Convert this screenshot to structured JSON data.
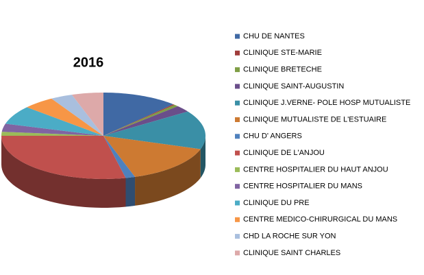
{
  "chart_data": {
    "type": "pie3d",
    "title": "2016",
    "categories": [
      "CHU DE NANTES",
      "CLINIQUE STE-MARIE",
      "CLINIQUE  BRETECHE",
      "CLINIQUE SAINT-AUGUSTIN",
      "CLINIQUE J.VERNE- POLE HOSP MUTUALISTE",
      "CLINIQUE MUTUALISTE DE L'ESTUAIRE",
      "CHU D' ANGERS",
      "CLINIQUE DE L'ANJOU",
      "CENTRE HOSPITALIER  DU HAUT ANJOU",
      "CENTRE HOSPITALIER DU MANS",
      "CLINIQUE DU PRE",
      "CENTRE MEDICO-CHIRURGICAL DU MANS",
      "CHD LA ROCHE SUR YON",
      "CLINIQUE SAINT CHARLES"
    ],
    "values": [
      12,
      0.3,
      0.7,
      2.5,
      14.5,
      15,
      1.5,
      28.5,
      1.5,
      3,
      7,
      5,
      3.5,
      5
    ],
    "colors": [
      "#4069A4",
      "#A03D3B",
      "#7F9E45",
      "#6A4E8A",
      "#3A8FA6",
      "#CD7A32",
      "#4F81BD",
      "#C0504D",
      "#9BBB59",
      "#8064A2",
      "#4BACC6",
      "#F79646",
      "#A9BFDE",
      "#DDA9A9"
    ],
    "legend": "right"
  }
}
